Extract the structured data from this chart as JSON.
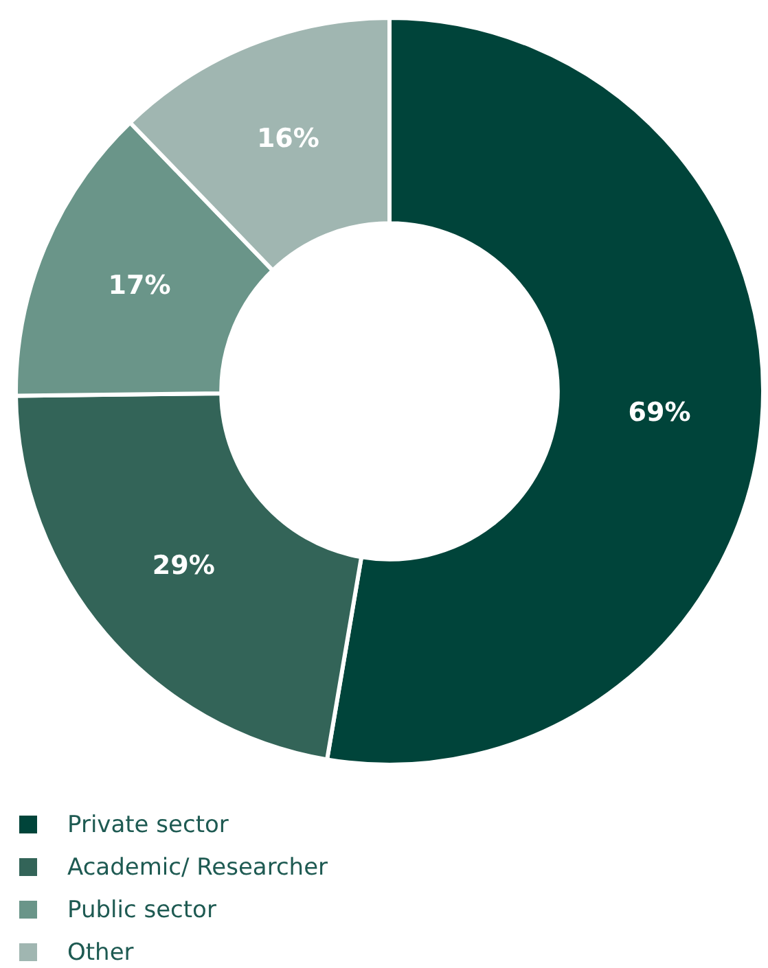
{
  "chart_data": {
    "type": "donut",
    "categories": [
      "Private sector",
      "Academic/ Researcher",
      "Public sector",
      "Other"
    ],
    "values": [
      69,
      29,
      17,
      16
    ],
    "colors": [
      "#00443a",
      "#336458",
      "#6a9589",
      "#a0b6b1"
    ],
    "value_labels": [
      "69%",
      "29%",
      "17%",
      "16%"
    ],
    "legend": "bottom left"
  }
}
